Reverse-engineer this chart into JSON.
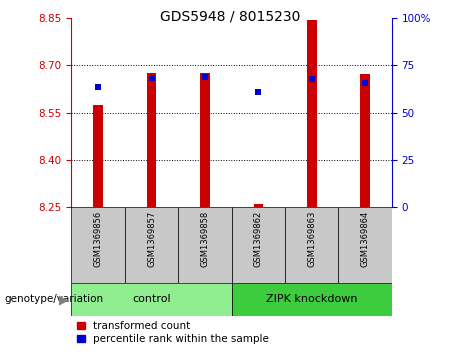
{
  "title": "GDS5948 / 8015230",
  "samples": [
    "GSM1369856",
    "GSM1369857",
    "GSM1369858",
    "GSM1369862",
    "GSM1369863",
    "GSM1369864"
  ],
  "red_values": [
    8.574,
    8.675,
    8.675,
    8.258,
    8.845,
    8.672
  ],
  "blue_values": [
    8.632,
    8.66,
    8.662,
    8.615,
    8.655,
    8.645
  ],
  "y_min": 8.25,
  "y_max": 8.85,
  "y_ticks_left": [
    8.25,
    8.4,
    8.55,
    8.7,
    8.85
  ],
  "y_ticks_right": [
    0,
    25,
    50,
    75,
    100
  ],
  "groups": [
    {
      "label": "control",
      "samples": [
        0,
        1,
        2
      ],
      "color": "#90ee90"
    },
    {
      "label": "ZIPK knockdown",
      "samples": [
        3,
        4,
        5
      ],
      "color": "#3dcc3d"
    }
  ],
  "group_label": "genotype/variation",
  "bar_color": "#cc0000",
  "dot_color": "#0000cc",
  "dot_size": 18,
  "bg_plot": "#ffffff",
  "bg_sample_labels": "#c8c8c8",
  "legend_items": [
    "transformed count",
    "percentile rank within the sample"
  ],
  "left_tick_color": "#cc0000",
  "right_tick_color": "#0000cc",
  "title_fontsize": 10
}
